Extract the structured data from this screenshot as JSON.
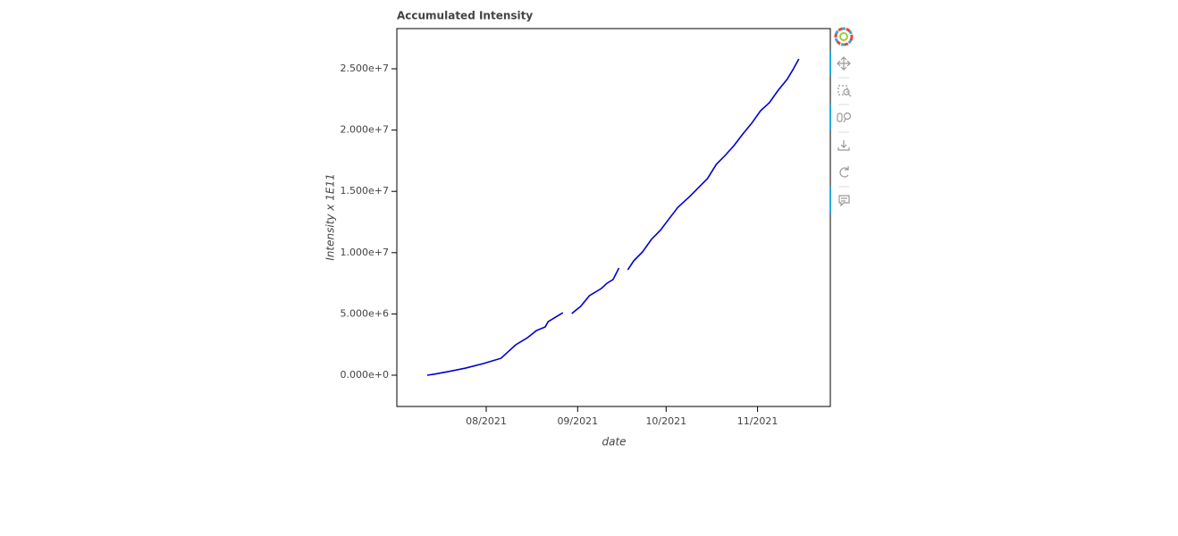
{
  "chart_data": {
    "type": "line",
    "title": "Accumulated Intensity",
    "x_label": "date",
    "y_label": "Intensity x 1E11",
    "x": [
      1626048000000,
      1626220800000,
      1626652800000,
      1627171200000,
      1627689600000,
      1628208000000,
      1628294400000,
      1628640000000,
      1628985600000,
      1629244800000,
      1629504000000,
      1629590400000,
      1629849600000,
      1630022400000,
      1630108800000,
      1630281600000,
      1630540800000,
      1630800000000,
      1631145600000,
      1631318400000,
      1631491200000,
      1631664000000,
      1631750400000,
      1631923200000,
      1632096000000,
      1632355200000,
      1632614400000,
      1632873600000,
      1633132800000,
      1633392000000,
      1633737600000,
      1633996800000,
      1634256000000,
      1634515200000,
      1634774400000,
      1635033600000,
      1635292800000,
      1635552000000,
      1635811200000,
      1636070400000,
      1636329600000,
      1636588800000,
      1636761600000,
      1636934400000
    ],
    "series": [
      {
        "name": "Accumulated Intensity",
        "color": "#0000cd",
        "values": [
          0,
          70000,
          290000,
          580000,
          950000,
          1380000,
          1600000,
          2480000,
          3060000,
          3640000,
          3940000,
          4370000,
          4810000,
          5100000,
          null,
          5030000,
          5610000,
          6490000,
          7070000,
          7510000,
          7800000,
          8750000,
          null,
          8600000,
          9330000,
          10060000,
          11080000,
          11810000,
          12760000,
          13700000,
          14580000,
          15310000,
          16040000,
          17200000,
          17930000,
          18730000,
          19680000,
          20550000,
          21570000,
          22230000,
          23250000,
          24130000,
          24930000,
          25800000
        ]
      }
    ],
    "xlim": [
      1625158080000,
      1637856000000
    ],
    "xticks": [
      {
        "value": 1627776000000,
        "label": "08/2021"
      },
      {
        "value": 1630454400000,
        "label": "09/2021"
      },
      {
        "value": 1633046400000,
        "label": "10/2021"
      },
      {
        "value": 1635724800000,
        "label": "11/2021"
      }
    ],
    "ylim": [
      -2550000,
      28280000
    ],
    "yticks": [
      {
        "value": 0,
        "label": "0.000e+0"
      },
      {
        "value": 5000000,
        "label": "5.000e+6"
      },
      {
        "value": 10000000,
        "label": "1.000e+7"
      },
      {
        "value": 15000000,
        "label": "1.500e+7"
      },
      {
        "value": 20000000,
        "label": "2.000e+7"
      },
      {
        "value": 25000000,
        "label": "2.500e+7"
      }
    ],
    "grid": false
  }
}
